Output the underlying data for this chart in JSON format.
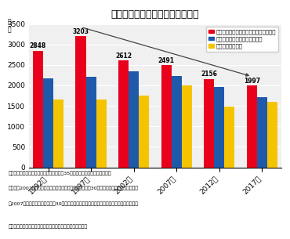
{
  "title": "平均退職給付額（全規模）の推移",
  "categories": [
    "1992年",
    "1997年",
    "2002年",
    "2007年",
    "2012年",
    "2017年"
  ],
  "series": [
    {
      "label": "大学・大学院卒（管理・事務・技術職）",
      "color": "#e8001c",
      "values": [
        2848,
        3203,
        2612,
        2491,
        2156,
        1997
      ]
    },
    {
      "label": "高校卒（管理・事務・技術職）",
      "color": "#1f5aaa",
      "values": [
        2175,
        2216,
        2351,
        2222,
        1954,
        1714
      ]
    },
    {
      "label": "高校卒（現業職）",
      "color": "#f5c400",
      "values": [
        1661,
        1661,
        1757,
        2003,
        1479,
        1604
      ]
    }
  ],
  "ylim": [
    0,
    3500
  ],
  "yticks": [
    0,
    500,
    1000,
    1500,
    2000,
    2500,
    3000,
    3500
  ],
  "ylabel": "万\n円",
  "annotations": [
    {
      "text": "2848",
      "series": 0,
      "cat": 0
    },
    {
      "text": "3203",
      "series": 0,
      "cat": 1
    },
    {
      "text": "2612",
      "series": 0,
      "cat": 2
    },
    {
      "text": "2491",
      "series": 0,
      "cat": 3
    },
    {
      "text": "2156",
      "series": 0,
      "cat": 4
    },
    {
      "text": "1997",
      "series": 0,
      "cat": 5
    }
  ],
  "note1": "（注１）上記は、どの学歴形態別でも勤続35年以上の者を対象としている。",
  "note2": "（注２）2002年以前は、調査対象は「本社の常用労働者が30人以上の民営企業」であるが、",
  "note3": "　2007年以降は「常用労働者が30人以上の民営企業」に範囲が拡大されていることに留意。",
  "source": "（出典）厚生労働省「就業構造基本調査」より、金融庁作成",
  "bg_color": "#ffffff",
  "plot_bg": "#f0f0f0",
  "grid_color": "#ffffff"
}
